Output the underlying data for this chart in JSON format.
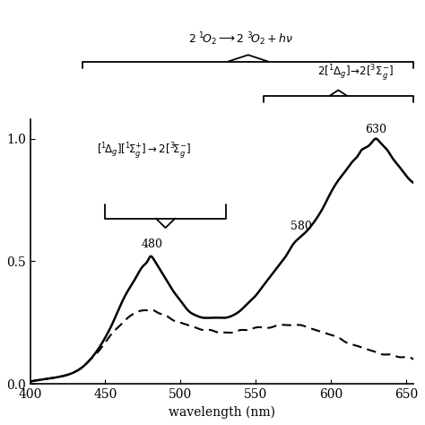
{
  "xlim": [
    400,
    655
  ],
  "ylim": [
    0.0,
    1.08
  ],
  "xlabel": "wavelength (nm)",
  "yticks": [
    0.0,
    0.5,
    1.0
  ],
  "xticks": [
    400,
    450,
    500,
    550,
    600,
    650
  ],
  "background_color": "#ffffff",
  "line_color_solid": "#000000",
  "line_color_dashed": "#000000",
  "solid_x": [
    400,
    410,
    420,
    430,
    435,
    440,
    445,
    450,
    455,
    460,
    465,
    470,
    475,
    478,
    480,
    482,
    485,
    490,
    495,
    500,
    505,
    510,
    515,
    520,
    525,
    530,
    535,
    540,
    545,
    550,
    555,
    560,
    565,
    570,
    575,
    580,
    585,
    590,
    595,
    600,
    605,
    610,
    615,
    618,
    620,
    622,
    625,
    628,
    630,
    632,
    635,
    638,
    640,
    645,
    650,
    655
  ],
  "solid_y": [
    0.01,
    0.02,
    0.03,
    0.05,
    0.07,
    0.1,
    0.14,
    0.19,
    0.25,
    0.32,
    0.38,
    0.43,
    0.48,
    0.5,
    0.52,
    0.51,
    0.48,
    0.43,
    0.38,
    0.34,
    0.3,
    0.28,
    0.27,
    0.27,
    0.27,
    0.27,
    0.28,
    0.3,
    0.33,
    0.36,
    0.4,
    0.44,
    0.48,
    0.52,
    0.57,
    0.6,
    0.63,
    0.67,
    0.72,
    0.78,
    0.83,
    0.87,
    0.91,
    0.93,
    0.95,
    0.96,
    0.97,
    0.99,
    1.0,
    0.99,
    0.97,
    0.95,
    0.93,
    0.89,
    0.85,
    0.82
  ],
  "dashed_x": [
    400,
    410,
    420,
    430,
    435,
    440,
    445,
    450,
    455,
    460,
    465,
    470,
    475,
    478,
    480,
    482,
    485,
    490,
    495,
    500,
    505,
    510,
    515,
    520,
    525,
    530,
    535,
    540,
    545,
    550,
    555,
    560,
    565,
    570,
    575,
    580,
    585,
    590,
    595,
    600,
    605,
    610,
    615,
    620,
    625,
    630,
    635,
    640,
    645,
    650,
    655
  ],
  "dashed_y": [
    0.01,
    0.02,
    0.03,
    0.05,
    0.07,
    0.1,
    0.13,
    0.17,
    0.21,
    0.24,
    0.27,
    0.29,
    0.3,
    0.3,
    0.3,
    0.3,
    0.29,
    0.28,
    0.26,
    0.25,
    0.24,
    0.23,
    0.22,
    0.22,
    0.21,
    0.21,
    0.21,
    0.22,
    0.22,
    0.23,
    0.23,
    0.23,
    0.24,
    0.24,
    0.24,
    0.24,
    0.23,
    0.22,
    0.21,
    0.2,
    0.19,
    0.17,
    0.16,
    0.15,
    0.14,
    0.13,
    0.12,
    0.12,
    0.11,
    0.11,
    0.1
  ]
}
